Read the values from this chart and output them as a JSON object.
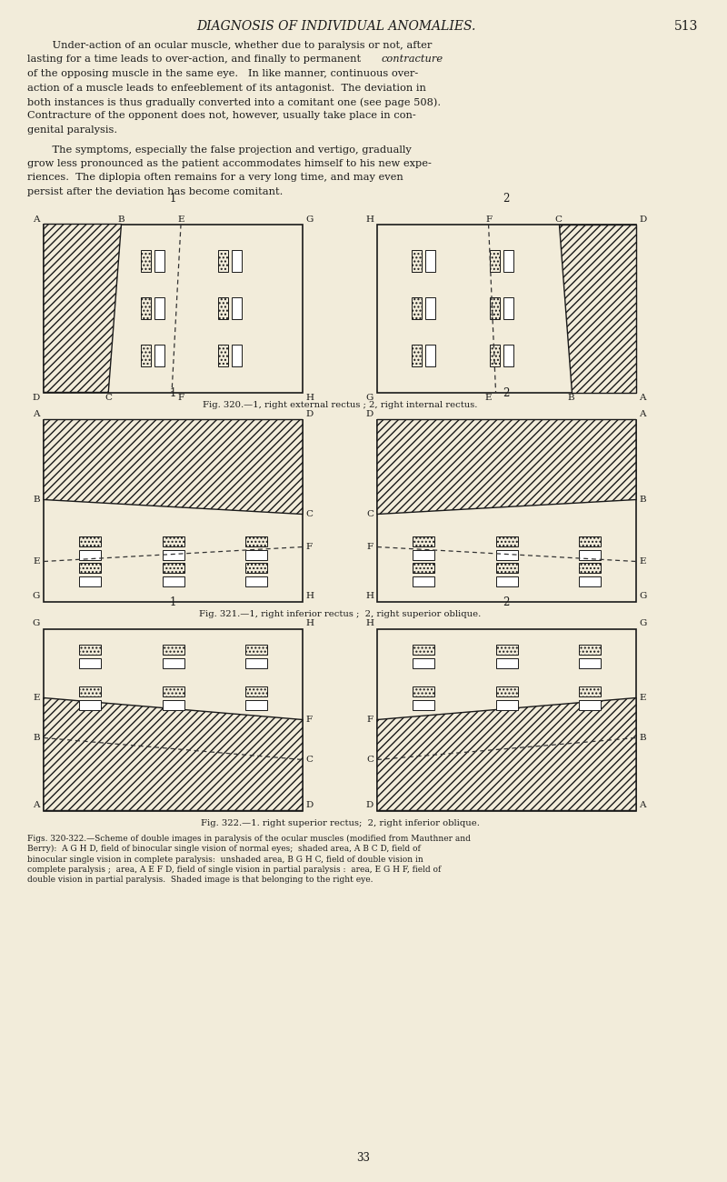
{
  "bg_color": "#f2ecda",
  "text_color": "#1a1a1a",
  "header": "DIAGNOSIS OF INDIVIDUAL ANOMALIES.",
  "page_num": "513",
  "footer": "33",
  "line_color": "#1a1a1a",
  "dashed_color": "#333333",
  "hatch_diag": "////",
  "hatch_vert": "||||"
}
